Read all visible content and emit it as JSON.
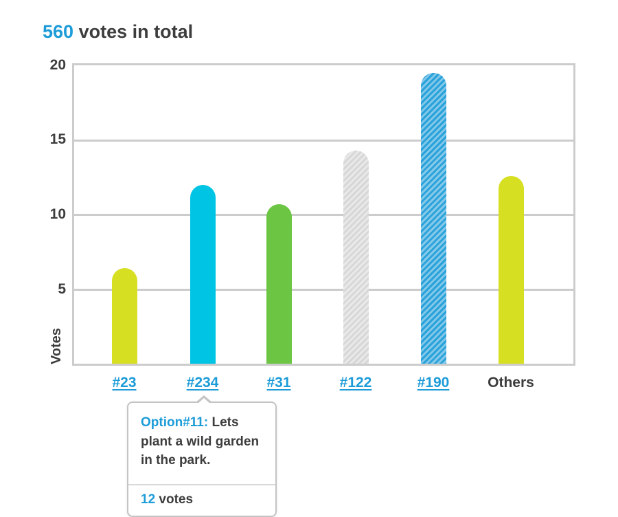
{
  "title": {
    "accent": "560",
    "rest": " votes in total"
  },
  "colors": {
    "accent_blue": "#1d9cd8",
    "text_dark": "#3d3d3d",
    "lime": "#d7df23",
    "cyan": "#00c4e4",
    "green": "#6cc644",
    "gray_bar": "#d7d7d7",
    "blue_bar": "#2aa2da",
    "grid": "#cccccc"
  },
  "chart_data": {
    "type": "bar",
    "title": "560 votes in total",
    "xlabel": "",
    "ylabel": "Votes",
    "ylim": [
      0,
      20
    ],
    "y_ticks": [
      "20",
      "15",
      "10",
      "5"
    ],
    "grid": true,
    "categories": [
      "#23",
      "#234",
      "#31",
      "#122",
      "#190",
      "Others"
    ],
    "values": [
      6.4,
      12,
      10.7,
      14.3,
      19.5,
      12.6
    ],
    "bar_styles": [
      "lime",
      "cyan",
      "green",
      "gray-hatch",
      "blue-hatch",
      "lime"
    ],
    "category_is_link": [
      true,
      true,
      true,
      true,
      true,
      false
    ]
  },
  "tooltip": {
    "option_label": "Option#11:",
    "option_text": " Lets plant a wild garden in the park.",
    "votes_value": "12",
    "votes_suffix": " votes"
  }
}
